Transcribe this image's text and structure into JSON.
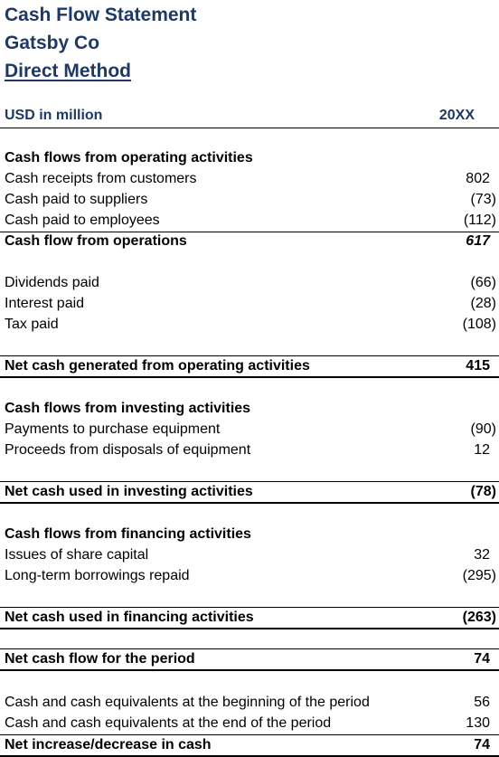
{
  "header": {
    "title_line1": "Cash Flow Statement",
    "title_line2": "Gatsby Co",
    "title_line3": "Direct Method",
    "units_label": "USD in million",
    "period_label": "20XX"
  },
  "operating": {
    "heading": "Cash flows from operating activities",
    "items": [
      {
        "label": "Cash receipts from customers",
        "value": "802"
      },
      {
        "label": "Cash paid to suppliers",
        "value": "(73)"
      },
      {
        "label": "Cash paid to employees",
        "value": "(112)"
      }
    ],
    "subtotal": {
      "label": "Cash flow from operations",
      "value": "617"
    },
    "other_items": [
      {
        "label": "Dividends paid",
        "value": "(66)"
      },
      {
        "label": "Interest paid",
        "value": "(28)"
      },
      {
        "label": "Tax paid",
        "value": "(108)"
      }
    ],
    "total": {
      "label": "Net cash generated from operating activities",
      "value": "415"
    }
  },
  "investing": {
    "heading": "Cash flows from investing activities",
    "items": [
      {
        "label": "Payments to purchase equipment",
        "value": "(90)"
      },
      {
        "label": "Proceeds from disposals of equipment",
        "value": "12"
      }
    ],
    "total": {
      "label": "Net cash used in investing activities",
      "value": "(78)"
    }
  },
  "financing": {
    "heading": "Cash flows from financing activities",
    "items": [
      {
        "label": "Issues of share capital",
        "value": "32"
      },
      {
        "label": "Long-term borrowings repaid",
        "value": "(295)"
      }
    ],
    "total": {
      "label": "Net cash used in financing activities",
      "value": "(263)"
    }
  },
  "net_flow": {
    "label": "Net cash flow for the period",
    "value": "74"
  },
  "cash_position": {
    "items": [
      {
        "label": "Cash and cash equivalents at the beginning of the period",
        "value": "56"
      },
      {
        "label": "Cash and cash equivalents at the end of the period",
        "value": "130"
      }
    ],
    "total": {
      "label": "Net increase/decrease in cash",
      "value": "74"
    }
  }
}
